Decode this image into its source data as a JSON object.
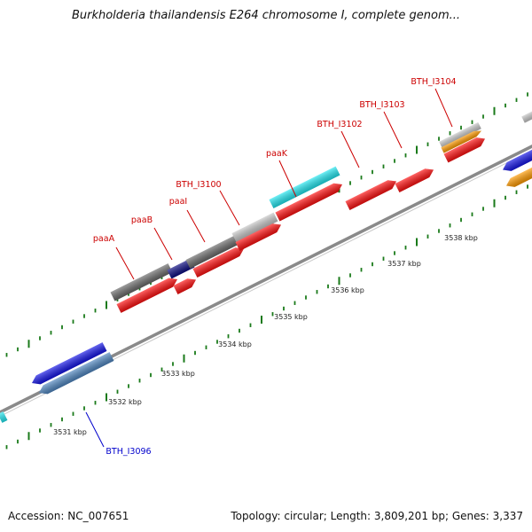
{
  "title": "Burkholderia thailandensis E264 chromosome I, complete genom...",
  "footer": {
    "accession": "Accession: NC_007651",
    "stats": "Topology: circular; Length: 3,809,201 bp; Genes: 3,337"
  },
  "scale_labels": [
    "3531 kbp",
    "3532 kbp",
    "3533 kbp",
    "3534 kbp",
    "3535 kbp",
    "3536 kbp",
    "3537 kbp",
    "3538 kbp"
  ],
  "gene_labels": [
    {
      "text": "paaA",
      "color": "#cc0000"
    },
    {
      "text": "paaB",
      "color": "#cc0000"
    },
    {
      "text": "paaI",
      "color": "#cc0000"
    },
    {
      "text": "BTH_I3100",
      "color": "#cc0000"
    },
    {
      "text": "paaK",
      "color": "#cc0000"
    },
    {
      "text": "BTH_I3102",
      "color": "#cc0000"
    },
    {
      "text": "BTH_I3103",
      "color": "#cc0000"
    },
    {
      "text": "BTH_I3104",
      "color": "#cc0000"
    },
    {
      "text": "BTH_I3096",
      "color": "#0000cc"
    }
  ],
  "colors": {
    "backbone": "#8a8a8a",
    "tick": "#1a7a1a",
    "red": "#ff1010",
    "blue": "#1414e6",
    "steelblue": "#4f86c0",
    "cyan": "#22e6f0",
    "darkgray": "#6a6a6a",
    "lightgray": "#c8c8c8",
    "navy": "#0a0a80",
    "orange": "#ff9a00"
  }
}
